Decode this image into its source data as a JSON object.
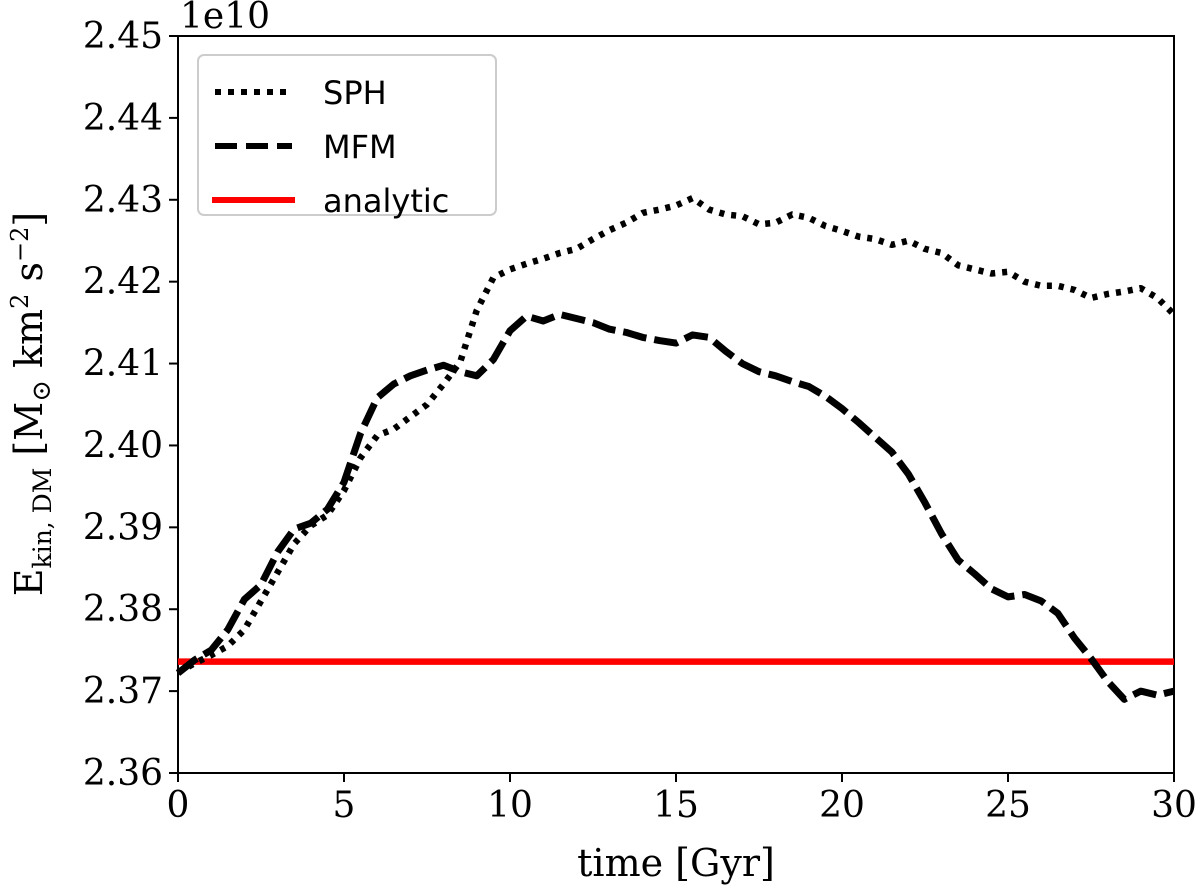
{
  "chart_data": {
    "type": "line",
    "title": "",
    "xlabel": "time [Gyr]",
    "ylabel_main": "E",
    "ylabel_sub": "kin, DM",
    "ylabel_units_open": "[M",
    "ylabel_units_sun": "⊙",
    "ylabel_units_km": "km",
    "ylabel_units_s": "s",
    "ylabel_units_exp1": "2",
    "ylabel_units_exp2": "−2",
    "ylabel_units_close": "]",
    "offset_text": "1e10",
    "xlim": [
      0,
      30
    ],
    "ylim": [
      2.36,
      2.45
    ],
    "xticks": [
      0,
      5,
      10,
      15,
      20,
      25,
      30
    ],
    "xtick_labels": [
      "0",
      "5",
      "10",
      "15",
      "20",
      "25",
      "30"
    ],
    "yticks": [
      2.36,
      2.37,
      2.38,
      2.39,
      2.4,
      2.41,
      2.42,
      2.43,
      2.44,
      2.45
    ],
    "ytick_labels": [
      "2.36",
      "2.37",
      "2.38",
      "2.39",
      "2.40",
      "2.41",
      "2.42",
      "2.43",
      "2.44",
      "2.45"
    ],
    "grid": false,
    "legend_position": "upper-left",
    "series": [
      {
        "name": "SPH",
        "style": "dotted",
        "color": "#000000",
        "x": [
          0,
          0.5,
          1,
          1.5,
          2,
          2.5,
          3,
          3.5,
          4,
          4.5,
          5,
          5.5,
          6,
          6.5,
          7,
          7.5,
          8,
          8.5,
          9,
          9.5,
          10,
          10.5,
          11,
          11.5,
          12,
          12.5,
          13,
          13.5,
          14,
          14.5,
          15,
          15.5,
          16,
          16.5,
          17,
          17.5,
          18,
          18.5,
          19,
          19.5,
          20,
          20.5,
          21,
          21.5,
          22,
          22.5,
          23,
          23.5,
          24,
          24.5,
          25,
          25.5,
          26,
          26.5,
          27,
          27.5,
          28,
          28.5,
          29,
          29.5,
          30
        ],
        "values": [
          2.3723,
          2.3734,
          2.3744,
          2.3755,
          2.3775,
          2.381,
          2.3845,
          2.388,
          2.3902,
          2.3915,
          2.3945,
          2.3985,
          2.4012,
          2.402,
          2.4035,
          2.405,
          2.4075,
          2.4102,
          2.4165,
          2.4205,
          2.4215,
          2.4222,
          2.4228,
          2.4235,
          2.424,
          2.4252,
          2.4263,
          2.4272,
          2.4284,
          2.4288,
          2.4293,
          2.4302,
          2.4288,
          2.4282,
          2.428,
          2.427,
          2.4272,
          2.4282,
          2.4278,
          2.4268,
          2.4262,
          2.4255,
          2.4252,
          2.4245,
          2.425,
          2.424,
          2.4235,
          2.422,
          2.4215,
          2.421,
          2.4212,
          2.42,
          2.4195,
          2.4195,
          2.419,
          2.418,
          2.4185,
          2.4188,
          2.4192,
          2.418,
          2.416
        ]
      },
      {
        "name": "MFM",
        "style": "dashed",
        "color": "#000000",
        "x": [
          0,
          0.5,
          1,
          1.5,
          2,
          2.5,
          3,
          3.5,
          4,
          4.5,
          5,
          5.5,
          6,
          6.5,
          7,
          7.5,
          8,
          8.5,
          9,
          9.5,
          10,
          10.5,
          11,
          11.5,
          12,
          12.5,
          13,
          13.5,
          14,
          14.5,
          15,
          15.5,
          16,
          16.5,
          17,
          17.5,
          18,
          18.5,
          19,
          19.5,
          20,
          20.5,
          21,
          21.5,
          22,
          22.5,
          23,
          23.5,
          24,
          24.5,
          25,
          25.5,
          26,
          26.5,
          27,
          27.5,
          28,
          28.5,
          29,
          29.5,
          30
        ],
        "values": [
          2.3722,
          2.3738,
          2.375,
          2.3775,
          2.3812,
          2.383,
          2.387,
          2.3898,
          2.3905,
          2.3922,
          2.3955,
          2.4015,
          2.4058,
          2.4075,
          2.4085,
          2.4092,
          2.4098,
          2.409,
          2.4085,
          2.4105,
          2.414,
          2.4158,
          2.4152,
          2.416,
          2.4155,
          2.415,
          2.4142,
          2.4138,
          2.4132,
          2.4128,
          2.4125,
          2.4135,
          2.4132,
          2.4115,
          2.41,
          2.409,
          2.4085,
          2.4078,
          2.4072,
          2.406,
          2.4045,
          2.4028,
          2.401,
          2.3992,
          2.3965,
          2.393,
          2.3892,
          2.386,
          2.3843,
          2.3825,
          2.3815,
          2.3818,
          2.381,
          2.3795,
          2.3765,
          2.374,
          2.3712,
          2.369,
          2.37,
          2.3695,
          2.37
        ]
      },
      {
        "name": "analytic",
        "style": "solid",
        "color": "#ff0000",
        "x": [
          0,
          30
        ],
        "values": [
          2.3736,
          2.3736
        ]
      }
    ]
  }
}
